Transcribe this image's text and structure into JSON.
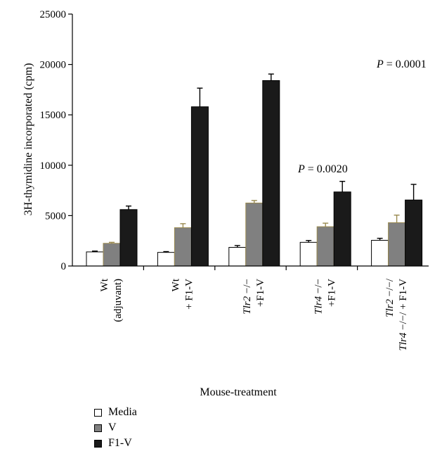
{
  "chart_data": {
    "type": "bar",
    "ylabel": "3H-thymidine incorporated (cpm)",
    "xlabel": "Mouse-treatment",
    "ylim": [
      0,
      25000
    ],
    "yticks": [
      0,
      5000,
      10000,
      15000,
      20000,
      25000
    ],
    "ytick_labels": [
      "0",
      "5000",
      "10000",
      "15000",
      "20000",
      "25000"
    ],
    "categories": [
      {
        "lines": [
          [
            {
              "t": "Wt"
            }
          ],
          [
            {
              "t": "(adjuvant)"
            }
          ]
        ]
      },
      {
        "lines": [
          [
            {
              "t": "Wt"
            }
          ],
          [
            {
              "t": "+ F1-V"
            }
          ]
        ]
      },
      {
        "lines": [
          [
            {
              "t": "Tlr2",
              "i": true
            },
            {
              "t": " −/−"
            }
          ],
          [
            {
              "t": "+F1-V"
            }
          ]
        ]
      },
      {
        "lines": [
          [
            {
              "t": "Tlr4",
              "i": true
            },
            {
              "t": " −/−"
            }
          ],
          [
            {
              "t": "+F1-V"
            }
          ]
        ]
      },
      {
        "lines": [
          [
            {
              "t": "Tlr2",
              "i": true
            },
            {
              "t": " −/−/"
            }
          ],
          [
            {
              "t": "Tlr4",
              "i": true
            },
            {
              "t": " −/−/ + F1-V"
            }
          ]
        ]
      }
    ],
    "series": [
      {
        "name": "Media",
        "color": "#ffffff",
        "values": [
          1400,
          1350,
          1850,
          2350,
          2550
        ],
        "errors": [
          80,
          80,
          180,
          180,
          200
        ]
      },
      {
        "name": "V",
        "color": "#808080",
        "values": [
          2250,
          3800,
          6250,
          3900,
          4300
        ],
        "errors": [
          100,
          400,
          250,
          350,
          750
        ]
      },
      {
        "name": "F1-V",
        "color": "#1a1a1a",
        "values": [
          5600,
          15800,
          18400,
          7350,
          6550
        ],
        "errors": [
          350,
          1850,
          650,
          1050,
          1550
        ]
      }
    ],
    "annotations": [
      {
        "label": "P",
        "value": " = 0.0001"
      },
      {
        "label": "P",
        "value": " = 0.0020"
      }
    ],
    "legend_position": "bottom-left"
  }
}
